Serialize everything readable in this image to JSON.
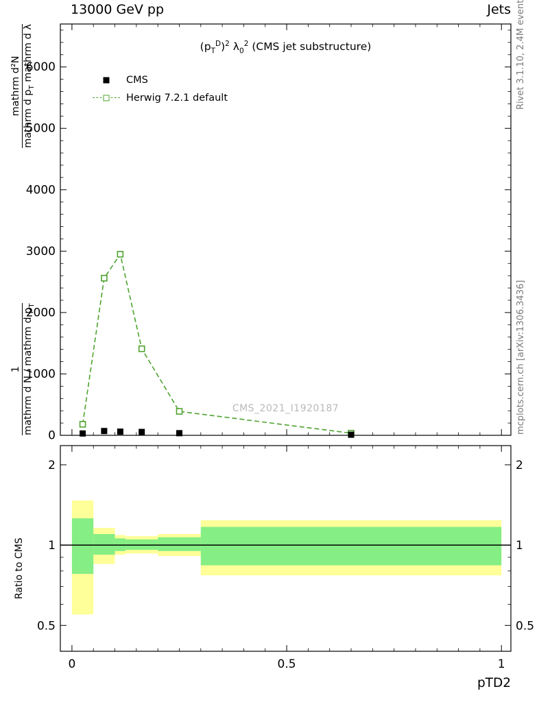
{
  "header": {
    "left_title": "13000 GeV pp",
    "right_title": "Jets"
  },
  "side_labels": {
    "rivet_version": "Rivet 3.1.10,  2.4M events",
    "mcplots_ref": "mcplots.cern.ch [arXiv:1306.3436]",
    "ratio_ylabel": "Ratio to CMS"
  },
  "colors": {
    "herwig_green": "#4da32f",
    "cms_black": "#000000",
    "band_outer_yellow": "#ffff99",
    "band_inner_green": "#85ee85",
    "watermark_gray": "#b9b9b9",
    "side_text_gray": "#7a7a7a"
  },
  "main_plot": {
    "title_segments": [
      {
        "t": "(p",
        "s": "n"
      },
      {
        "t": "T",
        "s": "sub"
      },
      {
        "t": "D",
        "s": "sup"
      },
      {
        "t": ")",
        "s": "n"
      },
      {
        "t": "2",
        "s": "sup"
      },
      {
        "t": " λ",
        "s": "n"
      },
      {
        "t": "0",
        "s": "sub"
      },
      {
        "t": "2",
        "s": "sup"
      },
      {
        "t": " (CMS jet substructure)",
        "s": "n"
      }
    ],
    "watermark": "CMS_2021_I1920187",
    "ylabel": {
      "frac1_num": "1",
      "frac1_den": "mathrm d N / mathrm d p",
      "frac1_den_sub": "T",
      "frac2_num": "mathrm d²N",
      "frac2_den_a": "mathrm d p",
      "frac2_den_sub": "T",
      "frac2_den_b": " mathrm d λ"
    },
    "legend": [
      {
        "label": "CMS",
        "marker": "filled-square",
        "color": "#000000"
      },
      {
        "label": "Herwig 7.2.1 default",
        "marker": "open-square-dashed",
        "color": "#4da32f"
      }
    ]
  },
  "x_axis": {
    "label": "pTD2",
    "ticks": [
      0,
      0.5,
      1
    ],
    "tick_labels": [
      "0",
      "0.5",
      "1"
    ]
  },
  "chart_data": [
    {
      "type": "line",
      "panel": "main",
      "title": "(p_T^D)^2 lambda_0^2 (CMS jet substructure)",
      "xlabel": "pTD2",
      "ylabel": "1 / mathrm d N / mathrm d p_T  ·  mathrm d²N / mathrm d p_T mathrm d λ",
      "xlim": [
        -0.027,
        1.022
      ],
      "ylim": [
        0,
        6700
      ],
      "yticks": [
        0,
        1000,
        2000,
        3000,
        4000,
        5000,
        6000
      ],
      "y_minor_step": 200,
      "x_minor_step": 0.05,
      "grid": false,
      "legend_position": "upper-left",
      "bin_edges": [
        0,
        0.05,
        0.1,
        0.125,
        0.2,
        0.3,
        1.0
      ],
      "x": [
        0.025,
        0.075,
        0.1125,
        0.1625,
        0.25,
        0.65
      ],
      "series": [
        {
          "name": "CMS",
          "marker": "filled-square",
          "line": "none",
          "color": "#000000",
          "values": [
            30,
            70,
            60,
            55,
            35,
            10
          ]
        },
        {
          "name": "Herwig 7.2.1 default",
          "marker": "open-square",
          "line": "dashed",
          "color": "#4da32f",
          "values": [
            180,
            2560,
            2950,
            1410,
            390,
            35
          ]
        }
      ]
    },
    {
      "type": "ratio-bands",
      "panel": "ratio",
      "ylabel": "Ratio to CMS",
      "yscale": "log",
      "xlim": [
        -0.027,
        1.022
      ],
      "ylim": [
        0.4,
        2.36
      ],
      "yticks": [
        0.5,
        1,
        2
      ],
      "ytick_labels": [
        "0.5",
        "1",
        "2"
      ],
      "y_minor": [
        0.6,
        0.7,
        0.8,
        0.9
      ],
      "x_minor_step": 0.05,
      "reference_line": 1.0,
      "band_colors": {
        "outer": "#ffff99",
        "inner": "#85ee85"
      },
      "bins": [
        {
          "x0": 0.0,
          "x1": 0.05,
          "outer": [
            0.55,
            1.47
          ],
          "inner": [
            0.78,
            1.26
          ]
        },
        {
          "x0": 0.05,
          "x1": 0.1,
          "outer": [
            0.85,
            1.16
          ],
          "inner": [
            0.92,
            1.1
          ]
        },
        {
          "x0": 0.1,
          "x1": 0.125,
          "outer": [
            0.92,
            1.09
          ],
          "inner": [
            0.95,
            1.06
          ]
        },
        {
          "x0": 0.125,
          "x1": 0.2,
          "outer": [
            0.93,
            1.08
          ],
          "inner": [
            0.96,
            1.05
          ]
        },
        {
          "x0": 0.2,
          "x1": 0.3,
          "outer": [
            0.91,
            1.1
          ],
          "inner": [
            0.95,
            1.07
          ]
        },
        {
          "x0": 0.3,
          "x1": 1.0,
          "outer": [
            0.77,
            1.24
          ],
          "inner": [
            0.84,
            1.17
          ]
        }
      ]
    }
  ]
}
